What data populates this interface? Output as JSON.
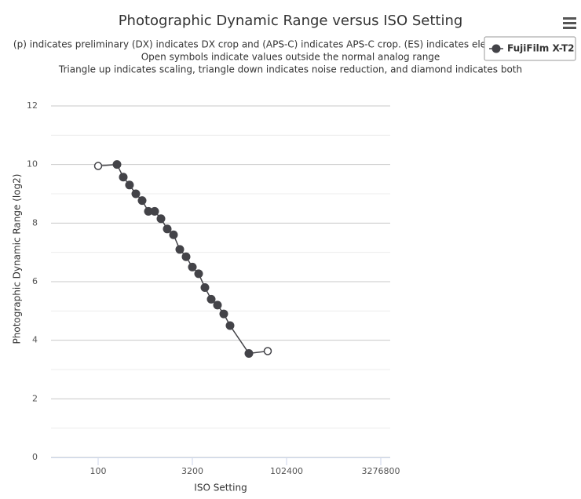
{
  "chart_data": {
    "type": "line",
    "title": "Photographic Dynamic Range versus ISO Setting",
    "subtitle": [
      "(p) indicates preliminary (DX) indicates DX crop and (APS-C) indicates APS-C crop. (ES) indicates ele",
      "Open symbols indicate values outside the normal analog range",
      "Triangle up indicates scaling, triangle down indicates noise reduction, and diamond indicates both"
    ],
    "x_label": "ISO Setting",
    "y_label": "Photographic Dynamic Range (log2)",
    "x_scale": "log",
    "xlim": [
      17.68,
      4634000
    ],
    "xticks": [
      100,
      3200,
      102400,
      3276800
    ],
    "ylim": [
      0,
      12
    ],
    "yticks": [
      0,
      2,
      4,
      6,
      8,
      10,
      12
    ],
    "grid": true,
    "minor_grid": true,
    "legend": "top-right",
    "series": [
      {
        "name": "FujiFilm X-T2",
        "color": "#434348",
        "x": [
          100,
          200,
          252,
          317,
          400,
          504,
          635,
          800,
          1008,
          1270,
          1600,
          2016,
          2540,
          3200,
          4032,
          5080,
          6400,
          8063,
          10159,
          12800,
          25600,
          51200
        ],
        "values": [
          9.95,
          10.0,
          9.57,
          9.3,
          9.0,
          8.77,
          8.4,
          8.4,
          8.15,
          7.8,
          7.6,
          7.1,
          6.85,
          6.5,
          6.27,
          5.8,
          5.4,
          5.2,
          4.9,
          4.5,
          3.55,
          3.63
        ],
        "open": [
          true,
          false,
          false,
          false,
          false,
          false,
          false,
          false,
          false,
          false,
          false,
          false,
          false,
          false,
          false,
          false,
          false,
          false,
          false,
          false,
          false,
          true
        ]
      }
    ]
  }
}
